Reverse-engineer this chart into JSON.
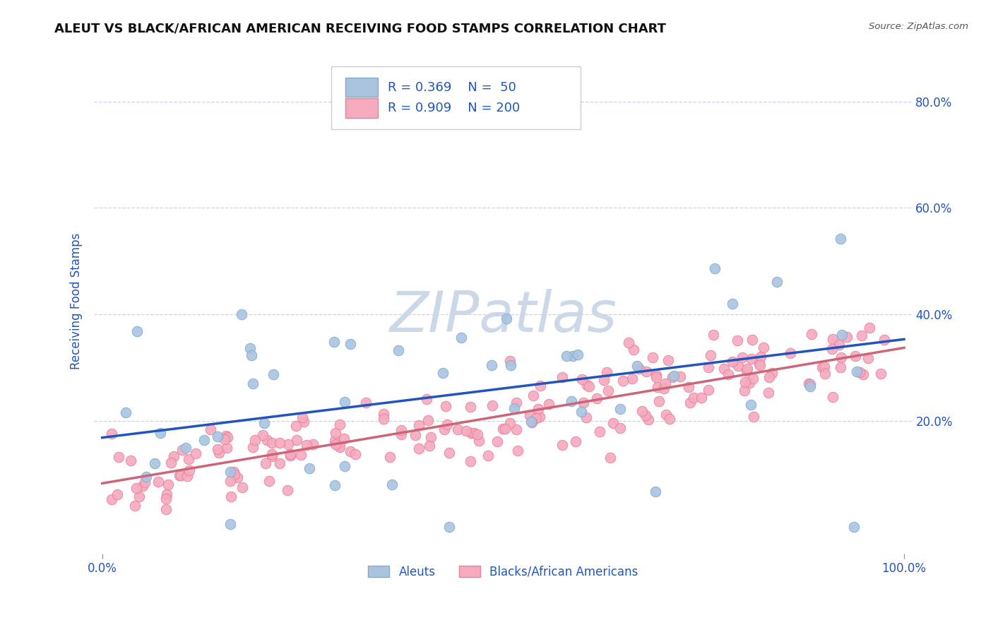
{
  "title": "ALEUT VS BLACK/AFRICAN AMERICAN RECEIVING FOOD STAMPS CORRELATION CHART",
  "source": "Source: ZipAtlas.com",
  "ylabel": "Receiving Food Stamps",
  "ytick_labels": [
    "20.0%",
    "40.0%",
    "60.0%",
    "80.0%"
  ],
  "ytick_values": [
    0.2,
    0.4,
    0.6,
    0.8
  ],
  "xlim": [
    -0.01,
    1.01
  ],
  "ylim": [
    -0.05,
    0.9
  ],
  "aleut_color": "#aac4e0",
  "aleut_edge_color": "#80aad0",
  "black_color": "#f5aabe",
  "black_edge_color": "#e8809a",
  "trendline_aleut_color": "#2255bb",
  "trendline_black_color": "#cc6677",
  "watermark_color": "#ccd8e8",
  "legend_text_color": "#2255bb",
  "title_color": "#111111",
  "axis_label_color": "#2255bb",
  "tick_color": "#2255bb",
  "background_color": "#ffffff",
  "grid_color": "#c8d4e0",
  "aleut_R": 0.369,
  "aleut_N": 50,
  "black_R": 0.909,
  "black_N": 200,
  "aleut_intercept": 0.168,
  "aleut_slope": 0.185,
  "black_intercept": 0.082,
  "black_slope": 0.255
}
